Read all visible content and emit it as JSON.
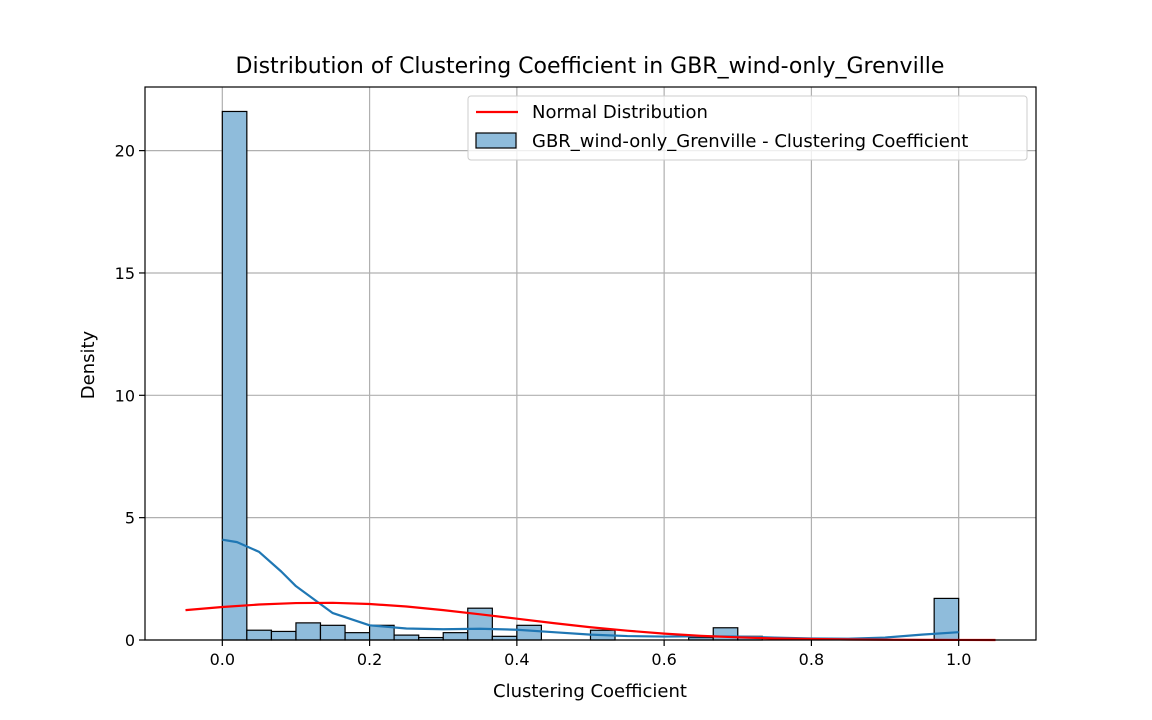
{
  "chart_data": {
    "type": "histogram",
    "title": "Distribution of Clustering Coefficient in GBR_wind-only_Grenville",
    "xlabel": "Clustering Coefficient",
    "ylabel": "Density",
    "xlim": [
      -0.105,
      1.105
    ],
    "ylim": [
      0,
      22.6
    ],
    "xticks": [
      0.0,
      0.2,
      0.4,
      0.6,
      0.8,
      1.0
    ],
    "xtick_labels": [
      "0.0",
      "0.2",
      "0.4",
      "0.6",
      "0.8",
      "1.0"
    ],
    "yticks": [
      0,
      5,
      10,
      15,
      20
    ],
    "ytick_labels": [
      "0",
      "5",
      "10",
      "15",
      "20"
    ],
    "grid": true,
    "legend_position": "top-right",
    "bin_edges": [
      0.0,
      0.0333,
      0.0667,
      0.1,
      0.1333,
      0.1667,
      0.2,
      0.2333,
      0.2667,
      0.3,
      0.3333,
      0.3667,
      0.4,
      0.4333,
      0.4667,
      0.5,
      0.5333,
      0.5667,
      0.6,
      0.6333,
      0.6667,
      0.7,
      0.7333,
      0.7667,
      0.8,
      0.8333,
      0.8667,
      0.9,
      0.9333,
      0.9667,
      1.0
    ],
    "series": [
      {
        "name": "GBR_wind-only_Grenville - Clustering Coefficient",
        "kind": "histogram",
        "color": "#8fbcdb",
        "edge_color": "#000000",
        "values": [
          21.6,
          0.4,
          0.35,
          0.7,
          0.6,
          0.3,
          0.6,
          0.2,
          0.1,
          0.3,
          1.3,
          0.15,
          0.6,
          0.0,
          0.0,
          0.4,
          0.0,
          0.0,
          0.0,
          0.1,
          0.5,
          0.15,
          0.0,
          0.0,
          0.0,
          0.0,
          0.0,
          0.0,
          0.0,
          1.7
        ]
      },
      {
        "name": "",
        "kind": "kde",
        "color": "#1f77b4",
        "x": [
          0.0,
          0.02,
          0.05,
          0.08,
          0.1,
          0.15,
          0.2,
          0.25,
          0.3,
          0.35,
          0.4,
          0.45,
          0.5,
          0.55,
          0.6,
          0.65,
          0.7,
          0.75,
          0.8,
          0.85,
          0.9,
          0.95,
          1.0
        ],
        "y": [
          4.1,
          4.0,
          3.6,
          2.8,
          2.2,
          1.1,
          0.6,
          0.47,
          0.44,
          0.46,
          0.42,
          0.32,
          0.22,
          0.16,
          0.14,
          0.15,
          0.14,
          0.1,
          0.06,
          0.05,
          0.1,
          0.22,
          0.32
        ]
      },
      {
        "name": "Normal Distribution",
        "kind": "line",
        "color": "#ff0000",
        "x": [
          -0.05,
          0.0,
          0.05,
          0.1,
          0.15,
          0.2,
          0.25,
          0.3,
          0.35,
          0.4,
          0.45,
          0.5,
          0.55,
          0.6,
          0.65,
          0.7,
          0.75,
          0.8,
          0.85,
          0.9,
          0.95,
          1.0,
          1.05
        ],
        "y": [
          1.22,
          1.35,
          1.45,
          1.51,
          1.52,
          1.47,
          1.37,
          1.22,
          1.05,
          0.87,
          0.69,
          0.52,
          0.38,
          0.26,
          0.17,
          0.11,
          0.06,
          0.04,
          0.02,
          0.01,
          0.005,
          0.002,
          0.001
        ]
      }
    ]
  }
}
